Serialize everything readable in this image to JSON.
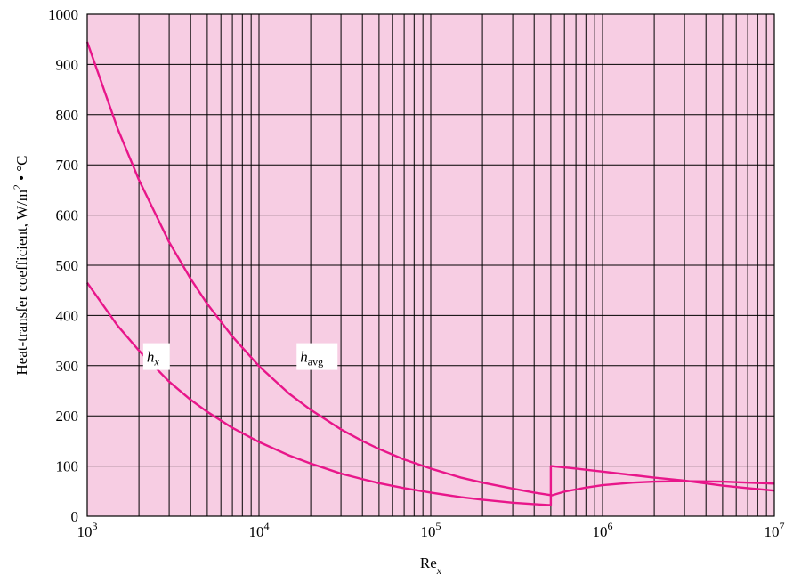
{
  "chart_data": {
    "type": "line",
    "xscale": "log",
    "xlim": [
      1000,
      10000000
    ],
    "ylim": [
      0,
      1000
    ],
    "grid": true,
    "background_color": "#f7cde3",
    "line_color": "#e8168a",
    "xlabel": {
      "base": "Re",
      "sub": "x"
    },
    "ylabel": "Heat-transfer coefficient, W/m",
    "ylabel_sup": "2",
    "ylabel_tail": " • °C",
    "x_ticks": [
      {
        "value": 1000,
        "base": "10",
        "exp": "3"
      },
      {
        "value": 10000,
        "base": "10",
        "exp": "4"
      },
      {
        "value": 100000,
        "base": "10",
        "exp": "5"
      },
      {
        "value": 1000000,
        "base": "10",
        "exp": "6"
      },
      {
        "value": 10000000,
        "base": "10",
        "exp": "7"
      }
    ],
    "y_ticks": [
      "0",
      "100",
      "200",
      "300",
      "400",
      "500",
      "600",
      "700",
      "800",
      "900",
      "1000"
    ],
    "annotations": [
      {
        "id": "hx",
        "base": "h",
        "sub": "x",
        "x": 2300,
        "y": 350
      },
      {
        "id": "havg",
        "base": "h",
        "sub": "avg",
        "x": 18000,
        "y": 350
      }
    ],
    "series": [
      {
        "points": [
          [
            1000,
            945
          ],
          [
            1500,
            773
          ],
          [
            2000,
            670
          ],
          [
            3000,
            546
          ],
          [
            4000,
            473
          ],
          [
            5000,
            423
          ],
          [
            7000,
            358
          ],
          [
            10000,
            299
          ],
          [
            15000,
            244
          ],
          [
            20000,
            212
          ],
          [
            30000,
            173
          ],
          [
            40000,
            150
          ],
          [
            50000,
            134
          ],
          [
            70000,
            113
          ],
          [
            100000,
            95
          ],
          [
            150000,
            77
          ],
          [
            200000,
            67
          ],
          [
            300000,
            55
          ],
          [
            400000,
            47
          ],
          [
            500000,
            42
          ],
          [
            500000,
            100
          ],
          [
            700000,
            95
          ],
          [
            1000000,
            89
          ],
          [
            1500000,
            82
          ],
          [
            2000000,
            77
          ],
          [
            3000000,
            71
          ],
          [
            5000000,
            61
          ],
          [
            7000000,
            56
          ],
          [
            10000000,
            51
          ]
        ]
      },
      {
        "points": [
          [
            1000,
            465
          ],
          [
            1500,
            380
          ],
          [
            2000,
            330
          ],
          [
            3000,
            268
          ],
          [
            4000,
            232
          ],
          [
            5000,
            208
          ],
          [
            7000,
            176
          ],
          [
            10000,
            148
          ],
          [
            15000,
            121
          ],
          [
            20000,
            105
          ],
          [
            30000,
            85
          ],
          [
            40000,
            74
          ],
          [
            50000,
            66
          ],
          [
            70000,
            56
          ],
          [
            100000,
            47
          ],
          [
            150000,
            38
          ],
          [
            200000,
            33
          ],
          [
            300000,
            27
          ],
          [
            400000,
            24
          ],
          [
            500000,
            22
          ],
          [
            500000,
            41
          ],
          [
            600000,
            49
          ],
          [
            800000,
            57
          ],
          [
            1000000,
            62
          ],
          [
            1500000,
            67
          ],
          [
            2000000,
            69
          ],
          [
            3000000,
            70
          ],
          [
            5000000,
            69
          ],
          [
            7000000,
            67
          ],
          [
            10000000,
            65
          ]
        ]
      }
    ]
  }
}
